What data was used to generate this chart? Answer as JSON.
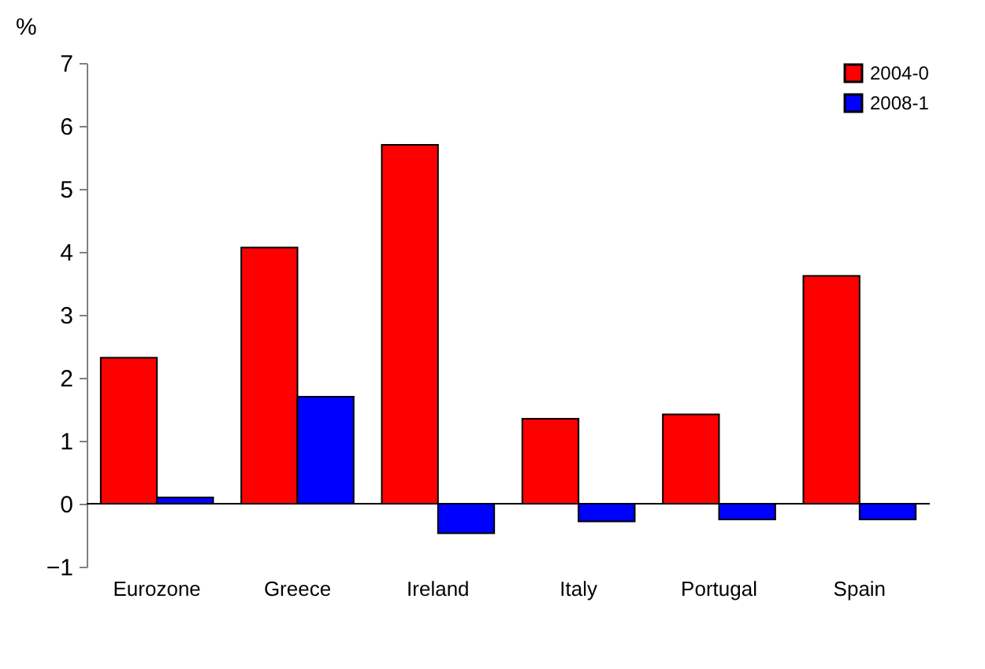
{
  "chart_data": {
    "type": "bar",
    "ylabel": "%",
    "categories": [
      "Eurozone",
      "Greece",
      "Ireland",
      "Italy",
      "Portugal",
      "Spain"
    ],
    "series": [
      {
        "name": "2004-0",
        "color": "#ff0000",
        "values": [
          2.32,
          4.07,
          5.7,
          1.35,
          1.42,
          3.62
        ]
      },
      {
        "name": "2008-1",
        "color": "#0000ff",
        "values": [
          0.1,
          1.7,
          -0.47,
          -0.28,
          -0.25,
          -0.25
        ]
      }
    ],
    "ylim": [
      -1,
      7
    ],
    "yticks": [
      -1,
      0,
      1,
      2,
      3,
      4,
      5,
      6,
      7
    ],
    "grid": false,
    "legend": "top right",
    "ref_lines": [
      {
        "axis": "y",
        "value": 0,
        "color": "#000000"
      }
    ]
  }
}
